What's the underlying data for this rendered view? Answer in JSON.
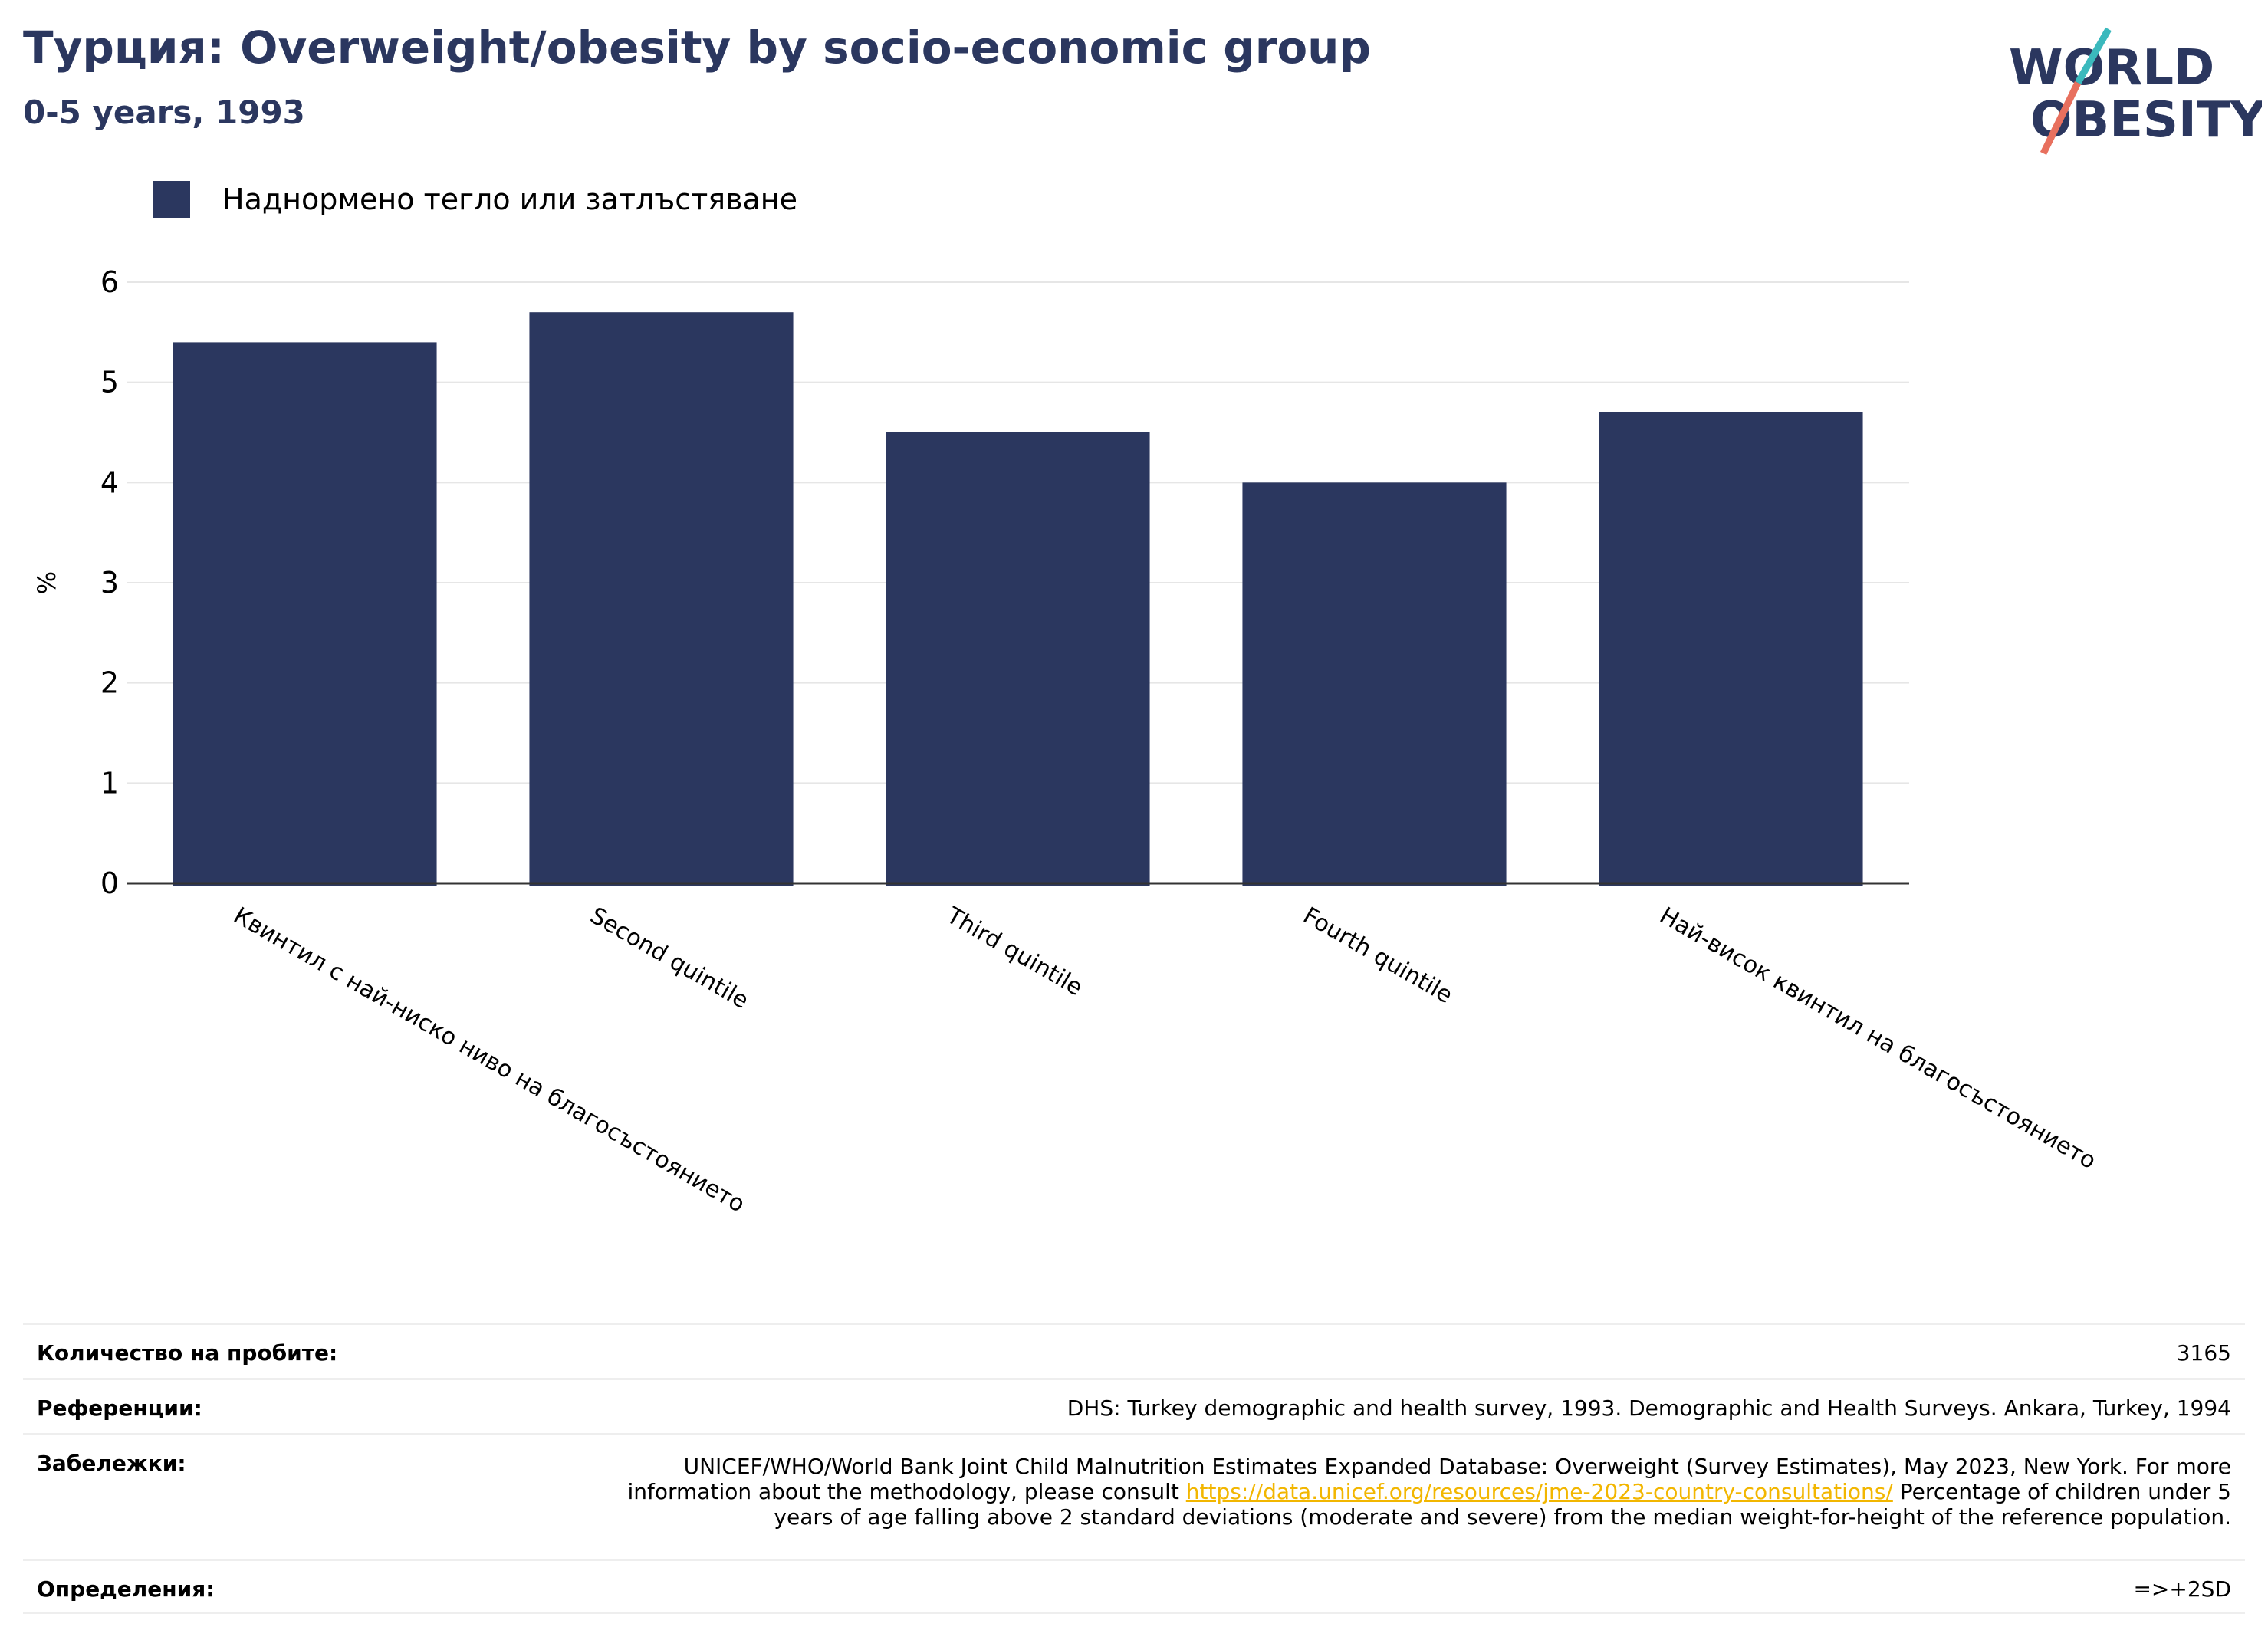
{
  "header": {
    "title": "Турция: Overweight/obesity by socio-economic group",
    "subtitle": "0-5 years, 1993",
    "logo": {
      "line1": "WORLD",
      "line2": "OBESITY",
      "colors": {
        "text": "#2b375f",
        "accent_teal": "#3bb9bd",
        "accent_red": "#e8705e"
      }
    }
  },
  "legend": {
    "label": "Наднормено тегло или затлъстяване",
    "color": "#2b375f"
  },
  "chart_data": {
    "type": "bar",
    "categories": [
      "Квинтил с най-ниско ниво на благосъстоянието",
      "Second quintile",
      "Third quintile",
      "Fourth quintile",
      "Най-висок квинтил на благосъстоянието"
    ],
    "series": [
      {
        "name": "Наднормено тегло или затлъстяване",
        "values": [
          5.4,
          5.7,
          4.5,
          4.0,
          4.7
        ],
        "color": "#2b375f"
      }
    ],
    "ylabel": "%",
    "ylim": [
      0,
      6
    ],
    "yticks": [
      0,
      1,
      2,
      3,
      4,
      5,
      6
    ],
    "grid": true,
    "legend_position": "top-left"
  },
  "info_table": {
    "sample_label": "Количество на пробите:",
    "sample_value": "3165",
    "references_label": "Референции:",
    "references_value": "DHS: Turkey demographic and health survey, 1993. Demographic and Health Surveys. Ankara, Turkey, 1994",
    "notes_label": "Забележки:",
    "notes_before_link": "UNICEF/WHO/World Bank Joint Child Malnutrition Estimates Expanded Database: Overweight (Survey Estimates), May 2023, New York. For more information about the methodology, please consult ",
    "notes_link": "https://data.unicef.org/resources/jme-2023-country-consultations/",
    "notes_after_link": " Percentage of children under 5 years of age falling above 2 standard deviations (moderate and severe) from the median weight-for-height of the reference population.",
    "definitions_label": "Определения:",
    "definitions_value": "=>+2SD"
  }
}
